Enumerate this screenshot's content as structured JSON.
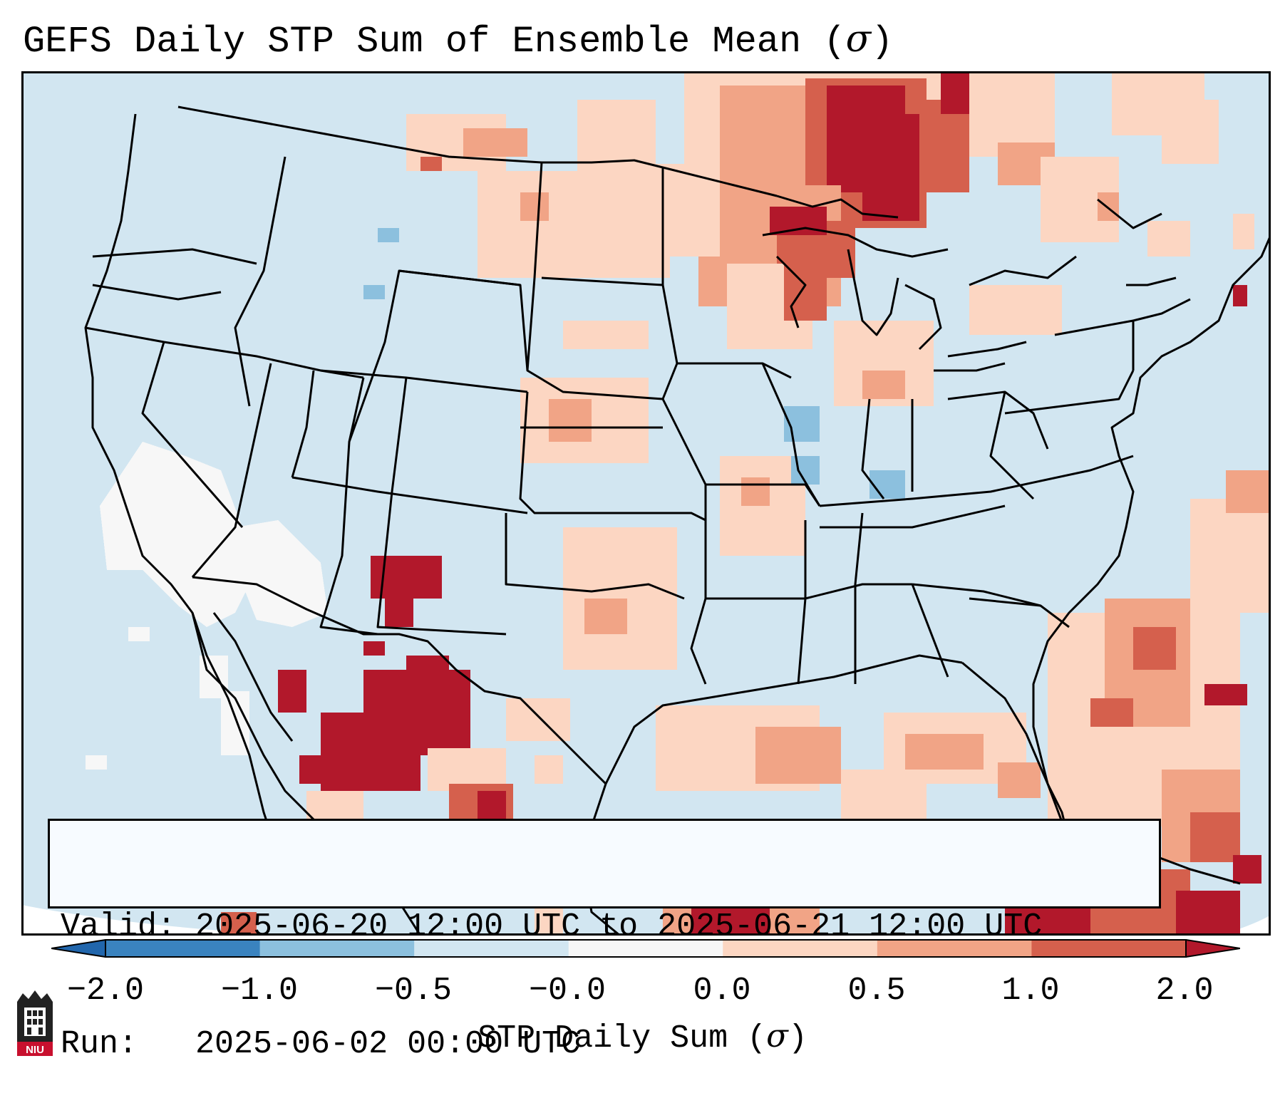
{
  "title": {
    "text": "GEFS Daily STP Sum of Ensemble Mean (",
    "symbol": "σ",
    "close": ")"
  },
  "info": {
    "valid": "Valid: 2025-06-20 12:00 UTC to 2025-06-21 12:00 UTC",
    "run": "Run:   2025-06-02 00:00 UTC"
  },
  "colorbar": {
    "label": "STP Daily Sum (",
    "symbol": "σ",
    "label_close": ")",
    "ticks": [
      "−2.0",
      "−1.0",
      "−0.5",
      "−0.0",
      "0.0",
      "0.5",
      "1.0",
      "2.0"
    ],
    "bins": [
      {
        "range": "-2.0 to -1.0",
        "color": "#3a83bf"
      },
      {
        "range": "-1.0 to -0.5",
        "color": "#8cc0de"
      },
      {
        "range": "-0.5 to -0.0",
        "color": "#d2e6f1"
      },
      {
        "range": "-0.0 to 0.0",
        "color": "#f7f7f7"
      },
      {
        "range": "0.0 to 0.5",
        "color": "#fcd6c2"
      },
      {
        "range": "0.5 to 1.0",
        "color": "#f1a486"
      },
      {
        "range": "1.0 to 2.0",
        "color": "#d5604d"
      }
    ],
    "under_color": "#2166ac",
    "over_color": "#b2182b"
  },
  "map": {
    "background_color": "#d2e6f1",
    "outside_color": "#ffffff",
    "border_color": "#000000"
  },
  "logo": {
    "text": "NIU"
  }
}
